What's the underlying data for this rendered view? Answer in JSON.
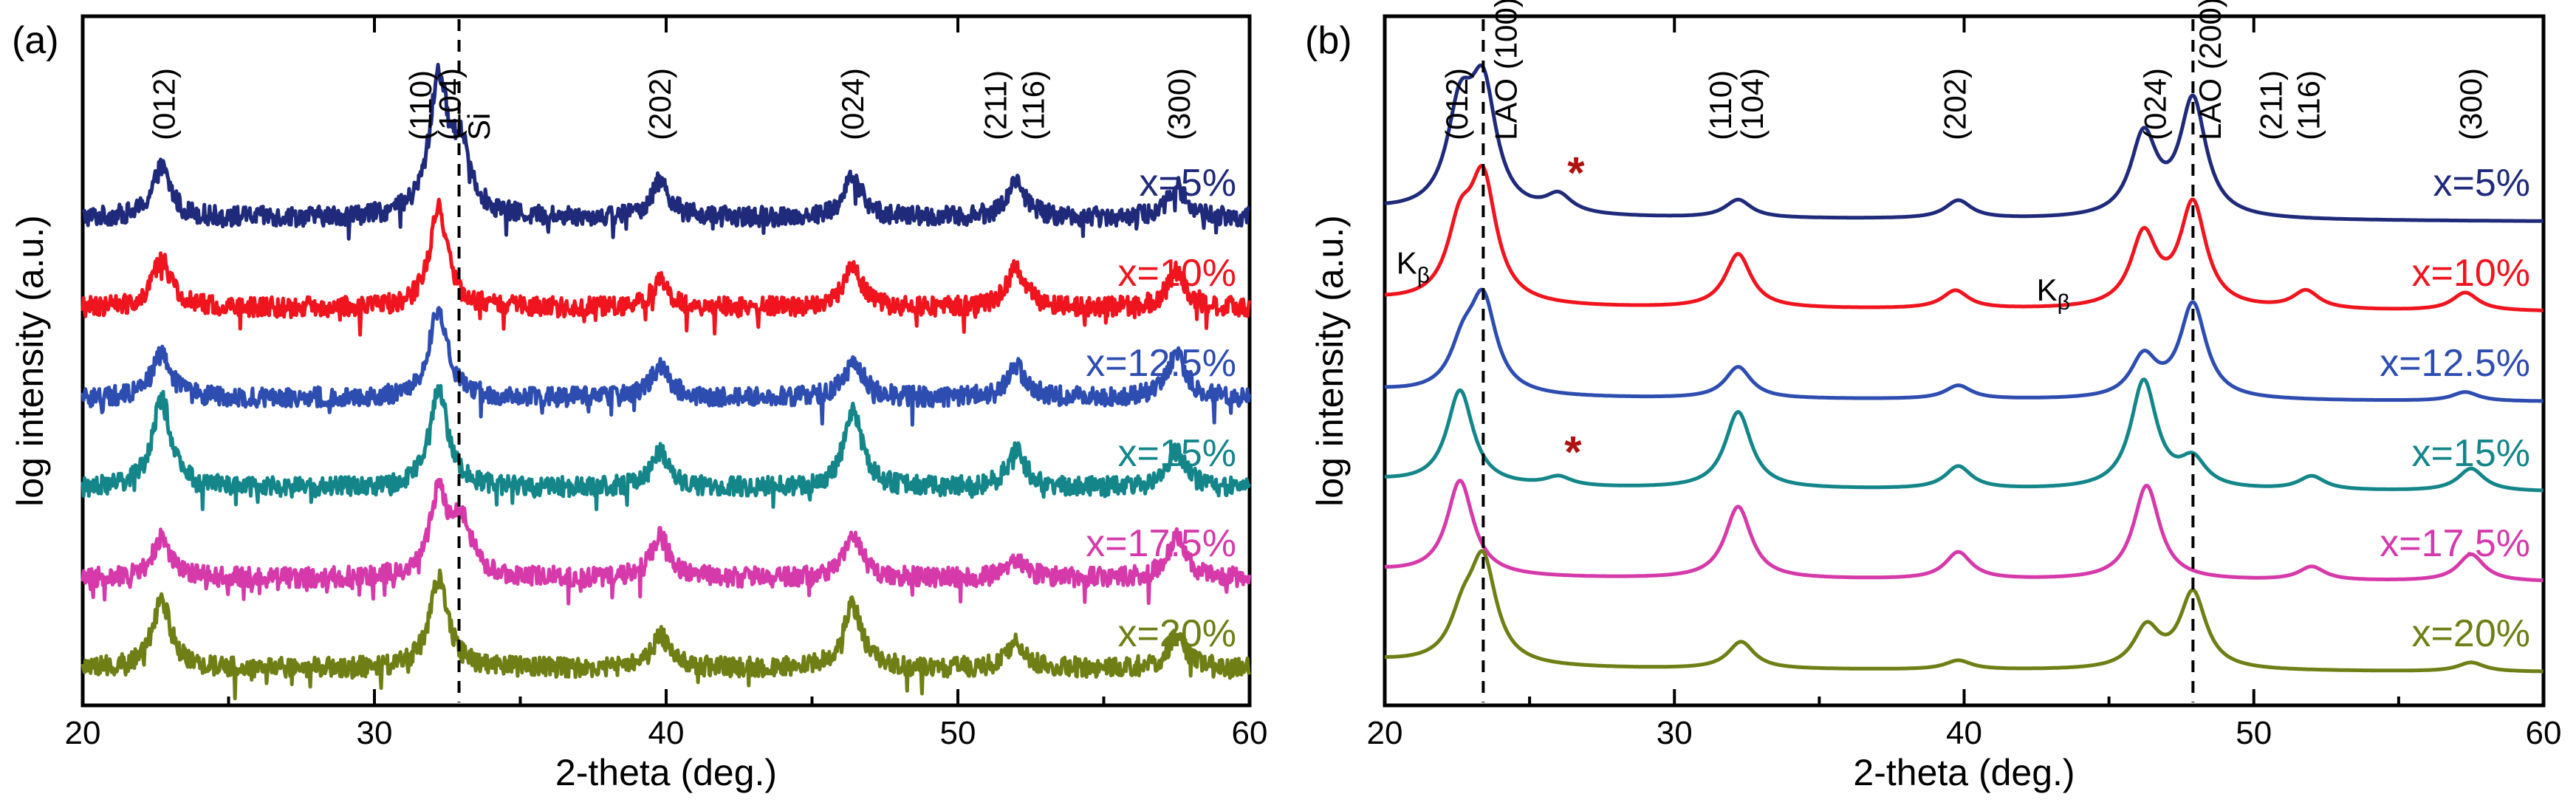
{
  "chart_data": [
    {
      "panel_label": "(a)",
      "type": "line",
      "xlabel": "2-theta (deg.)",
      "ylabel": "log intensity (a.u.)",
      "xlim": [
        20,
        60
      ],
      "xticks": [
        20,
        30,
        40,
        50,
        60
      ],
      "noisy": true,
      "reference_lines": [
        {
          "x": 32.9,
          "label": "Si"
        }
      ],
      "peak_labels": [
        {
          "text": "(012)",
          "x": 22.8
        },
        {
          "text": "(110)",
          "x": 31.6
        },
        {
          "text": "(104)",
          "x": 32.6
        },
        {
          "text": "Si",
          "x": 33.6
        },
        {
          "text": "(202)",
          "x": 39.8
        },
        {
          "text": "(024)",
          "x": 46.4
        },
        {
          "text": "(211)",
          "x": 51.3
        },
        {
          "text": "(116)",
          "x": 52.6
        },
        {
          "text": "(300)",
          "x": 57.6
        }
      ],
      "annotations": [],
      "series": [
        {
          "name": "x=5%",
          "color": "#1f2a7a",
          "offset": 5,
          "peaks": [
            [
              22.7,
              0.55
            ],
            [
              32.2,
              1.5
            ],
            [
              33.0,
              0.7
            ],
            [
              39.8,
              0.4
            ],
            [
              46.4,
              0.45
            ],
            [
              52.0,
              0.4
            ],
            [
              57.5,
              0.35
            ]
          ]
        },
        {
          "name": "x=10%",
          "color": "#f0141e",
          "offset": 4,
          "peaks": [
            [
              22.7,
              0.55
            ],
            [
              32.2,
              1.1
            ],
            [
              39.8,
              0.3
            ],
            [
              46.4,
              0.45
            ],
            [
              52.0,
              0.45
            ],
            [
              57.5,
              0.4
            ]
          ]
        },
        {
          "name": "x=12.5%",
          "color": "#2e4db0",
          "offset": 3,
          "peaks": [
            [
              22.7,
              0.5
            ],
            [
              32.2,
              1.0
            ],
            [
              39.8,
              0.35
            ],
            [
              46.4,
              0.45
            ],
            [
              52.0,
              0.35
            ],
            [
              57.5,
              0.5
            ]
          ]
        },
        {
          "name": "x=15%",
          "color": "#14868a",
          "offset": 2,
          "peaks": [
            [
              22.7,
              1.0
            ],
            [
              32.2,
              1.1
            ],
            [
              39.8,
              0.4
            ],
            [
              46.4,
              0.85
            ],
            [
              52.0,
              0.4
            ],
            [
              57.5,
              0.4
            ]
          ]
        },
        {
          "name": "x=17.5%",
          "color": "#d63aaa",
          "offset": 1,
          "peaks": [
            [
              22.7,
              0.45
            ],
            [
              32.2,
              0.9
            ],
            [
              33.0,
              0.6
            ],
            [
              39.8,
              0.45
            ],
            [
              46.4,
              0.45
            ],
            [
              52.0,
              0.2
            ],
            [
              57.5,
              0.45
            ]
          ]
        },
        {
          "name": "x=20%",
          "color": "#6f7f15",
          "offset": 0,
          "peaks": [
            [
              22.7,
              0.75
            ],
            [
              32.2,
              1.0
            ],
            [
              39.8,
              0.35
            ],
            [
              46.4,
              0.7
            ],
            [
              52.0,
              0.3
            ],
            [
              57.5,
              0.35
            ]
          ]
        }
      ]
    },
    {
      "panel_label": "(b)",
      "type": "line",
      "xlabel": "2-theta (deg.)",
      "ylabel": "log intensity (a.u.)",
      "xlim": [
        20,
        60
      ],
      "xticks": [
        20,
        30,
        40,
        50,
        60
      ],
      "noisy": false,
      "reference_lines": [
        {
          "x": 23.4,
          "label": "LAO (100)"
        },
        {
          "x": 47.9,
          "label": "LAO (200)"
        }
      ],
      "peak_labels": [
        {
          "text": "(012)",
          "x": 22.5
        },
        {
          "text": "LAO (100)",
          "x": 24.2
        },
        {
          "text": "(110)",
          "x": 31.6
        },
        {
          "text": "(104)",
          "x": 32.7
        },
        {
          "text": "(202)",
          "x": 39.7
        },
        {
          "text": "(024)",
          "x": 46.6
        },
        {
          "text": "LAO (200)",
          "x": 48.5
        },
        {
          "text": "(211)",
          "x": 50.6
        },
        {
          "text": "(116)",
          "x": 51.9
        },
        {
          "text": "(300)",
          "x": 57.5
        }
      ],
      "annotations": [
        {
          "text": "K",
          "sub": "β",
          "x": 20.4,
          "y_series": "x=10%",
          "dy": 0.3
        },
        {
          "text": "K",
          "sub": "β",
          "x": 42.5,
          "y_series": "x=10%",
          "dy": 0.0
        },
        {
          "text": "*",
          "x": 26.6,
          "y_series": "x=5%",
          "dy": 0.25,
          "type": "star"
        },
        {
          "text": "*",
          "x": 26.5,
          "y_series": "x=15%",
          "dy": 0.15,
          "type": "star"
        }
      ],
      "series": [
        {
          "name": "x=5%",
          "color": "#1f2a7a",
          "offset": 5,
          "peaks": [
            [
              22.6,
              1.05
            ],
            [
              23.4,
              1.3
            ],
            [
              26.0,
              0.2
            ],
            [
              32.2,
              0.2
            ],
            [
              39.8,
              0.2
            ],
            [
              46.2,
              0.9
            ],
            [
              47.9,
              1.3
            ]
          ]
        },
        {
          "name": "x=10%",
          "color": "#f0141e",
          "offset": 4,
          "peaks": [
            [
              22.6,
              0.75
            ],
            [
              23.4,
              1.3
            ],
            [
              32.2,
              0.6
            ],
            [
              39.7,
              0.2
            ],
            [
              46.2,
              0.8
            ],
            [
              47.9,
              1.15
            ],
            [
              51.8,
              0.2
            ],
            [
              57.3,
              0.2
            ]
          ]
        },
        {
          "name": "x=12.5%",
          "color": "#2e4db0",
          "offset": 3,
          "peaks": [
            [
              22.7,
              0.45
            ],
            [
              23.4,
              1.0
            ],
            [
              32.2,
              0.35
            ],
            [
              39.8,
              0.15
            ],
            [
              46.2,
              0.45
            ],
            [
              47.9,
              1.05
            ],
            [
              57.3,
              0.1
            ]
          ]
        },
        {
          "name": "x=15%",
          "color": "#14868a",
          "offset": 2,
          "peaks": [
            [
              22.6,
              1.05
            ],
            [
              26.0,
              0.1
            ],
            [
              32.2,
              0.85
            ],
            [
              39.8,
              0.25
            ],
            [
              46.2,
              1.2
            ],
            [
              47.9,
              0.3
            ],
            [
              52.0,
              0.15
            ],
            [
              57.5,
              0.25
            ]
          ]
        },
        {
          "name": "x=17.5%",
          "color": "#d63aaa",
          "offset": 1,
          "peaks": [
            [
              22.6,
              1.05
            ],
            [
              32.2,
              0.8
            ],
            [
              39.8,
              0.3
            ],
            [
              46.3,
              1.05
            ],
            [
              52.0,
              0.15
            ],
            [
              57.5,
              0.3
            ]
          ]
        },
        {
          "name": "x=20%",
          "color": "#6f7f15",
          "offset": 0,
          "peaks": [
            [
              22.7,
              0.45
            ],
            [
              23.4,
              1.1
            ],
            [
              32.3,
              0.3
            ],
            [
              39.8,
              0.1
            ],
            [
              46.3,
              0.45
            ],
            [
              47.9,
              0.85
            ],
            [
              57.5,
              0.1
            ]
          ]
        }
      ]
    }
  ]
}
